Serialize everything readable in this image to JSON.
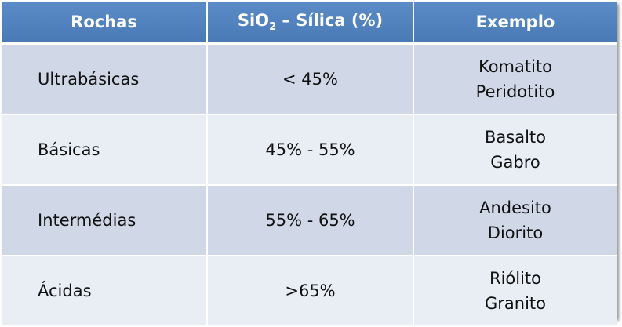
{
  "table": {
    "header": [
      [
        "Rochas"
      ],
      [
        "SiO",
        "2",
        " – Sílica (%)"
      ],
      [
        "Exemplo"
      ]
    ],
    "rows": [
      [
        "Ultrabásicas",
        "< 45%",
        [
          "Komatito",
          "Peridotito"
        ]
      ],
      [
        "Básicas",
        "45% - 55%",
        [
          "Basalto",
          "Gabro"
        ]
      ],
      [
        "Intermédias",
        "55% - 65%",
        [
          "Andesito",
          "Diorito"
        ]
      ],
      [
        "Ácidas",
        ">65%",
        [
          "Riólito",
          "Granito"
        ]
      ]
    ]
  }
}
